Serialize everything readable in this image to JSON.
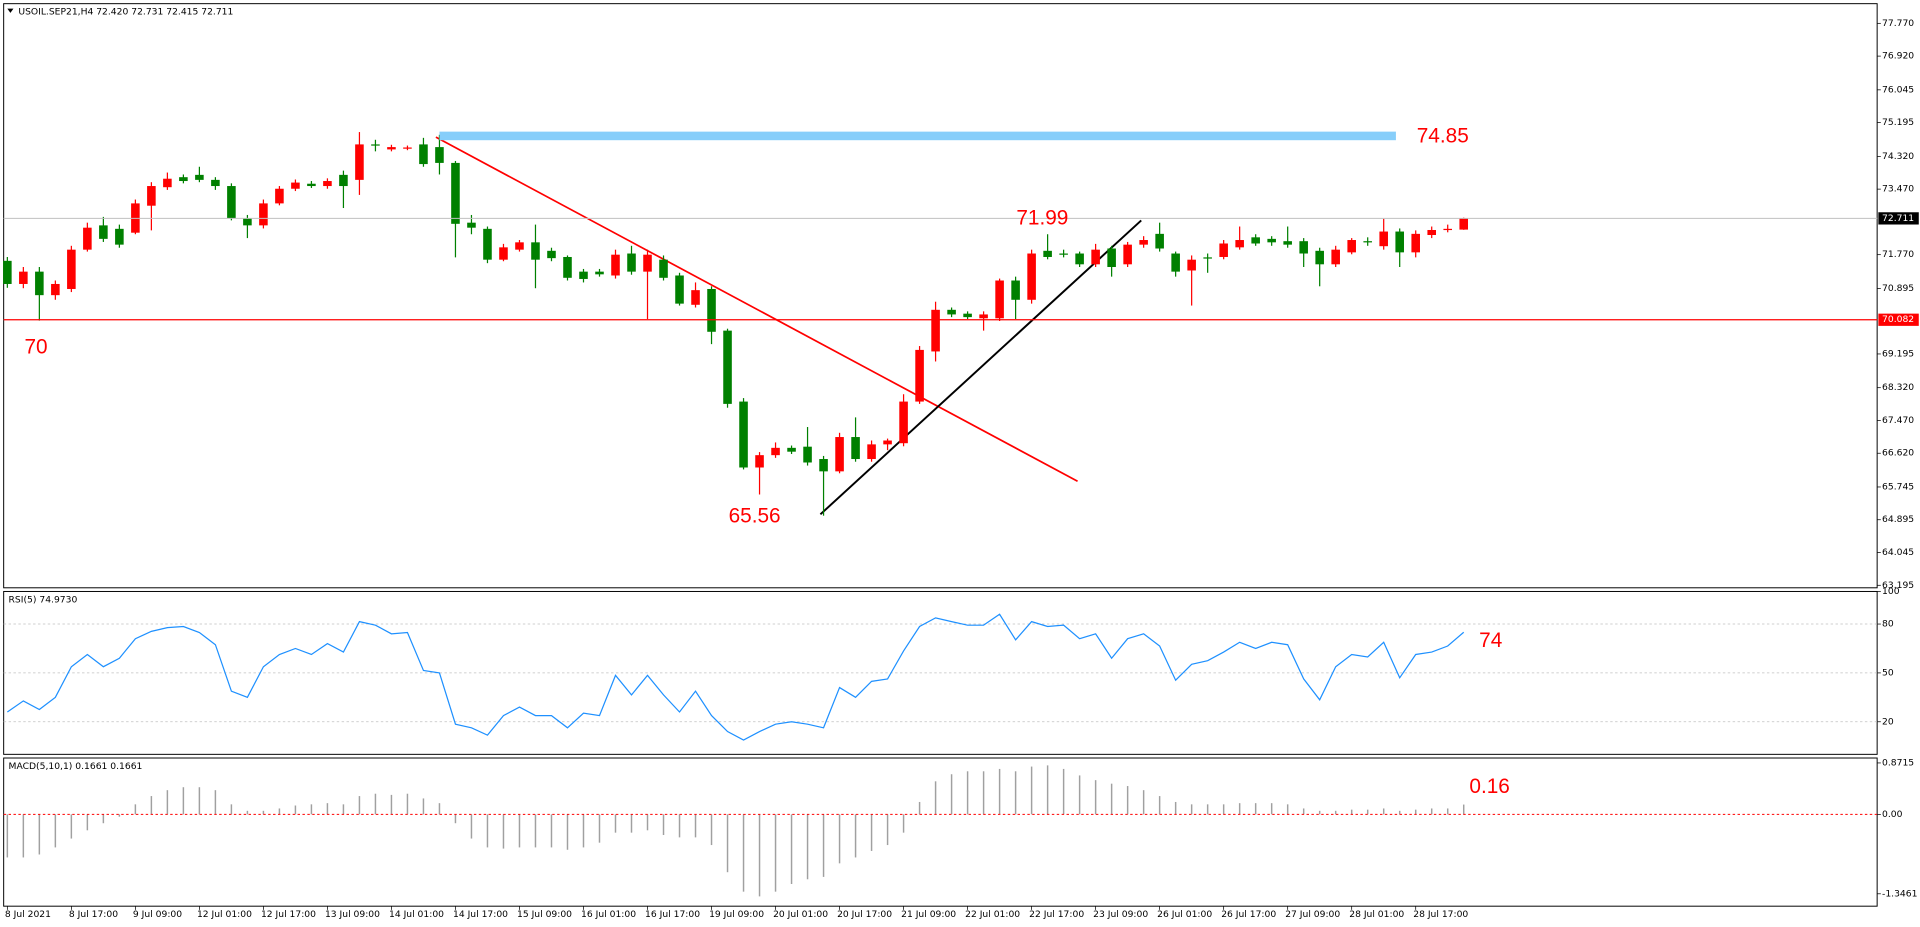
{
  "chart_data": [
    {
      "type": "candlestick",
      "title": "USOIL.SEP21,H4  72.420 72.731 72.415 72.711",
      "categories": [
        "8 Jul 2021",
        null,
        null,
        null,
        "8 Jul 17:00",
        null,
        null,
        null,
        "9 Jul 09:00",
        null,
        null,
        null,
        "12 Jul 01:00",
        null,
        null,
        null,
        "12 Jul 17:00",
        null,
        null,
        null,
        "13 Jul 09:00",
        null,
        null,
        null,
        "14 Jul 01:00",
        null,
        null,
        null,
        "14 Jul 17:00",
        null,
        null,
        null,
        "15 Jul 09:00",
        null,
        null,
        null,
        "16 Jul 01:00",
        null,
        null,
        null,
        "16 Jul 17:00",
        null,
        null,
        null,
        "19 Jul 09:00",
        null,
        null,
        null,
        "20 Jul 01:00",
        null,
        null,
        null,
        "20 Jul 17:00",
        null,
        null,
        null,
        "21 Jul 09:00",
        null,
        null,
        null,
        "22 Jul 01:00",
        null,
        null,
        null,
        "22 Jul 17:00",
        null,
        null,
        null,
        "23 Jul 09:00",
        null,
        null,
        null,
        "26 Jul 01:00",
        null,
        null,
        null,
        "26 Jul 17:00",
        null,
        null,
        null,
        "27 Jul 09:00",
        null,
        null,
        null,
        "28 Jul 01:00",
        null,
        null,
        null,
        "28 Jul 17:00",
        null,
        null,
        null
      ],
      "open": [
        71.61,
        71.01,
        71.33,
        70.72,
        70.88,
        71.9,
        72.53,
        72.44,
        72.34,
        73.04,
        73.52,
        73.78,
        73.84,
        73.71,
        73.55,
        72.72,
        72.53,
        73.1,
        73.48,
        73.61,
        73.55,
        73.84,
        73.71,
        74.63,
        74.5,
        74.52,
        74.63,
        74.56,
        74.15,
        72.6,
        72.44,
        71.64,
        71.9,
        72.09,
        71.87,
        71.71,
        71.33,
        71.33,
        71.23,
        71.8,
        71.33,
        71.64,
        71.23,
        70.47,
        70.88,
        69.8,
        67.96,
        66.25,
        66.57,
        66.76,
        66.79,
        66.47,
        66.15,
        67.04,
        66.47,
        66.85,
        66.88,
        67.96,
        69.26,
        70.34,
        70.24,
        70.12,
        70.12,
        71.1,
        70.6,
        71.87,
        71.8,
        71.8,
        71.52,
        71.93,
        71.52,
        72.03,
        72.31,
        71.8,
        71.36,
        71.7,
        71.71,
        71.96,
        72.22,
        72.18,
        72.12,
        72.12,
        71.87,
        71.52,
        71.83,
        72.12,
        71.99,
        72.37,
        71.83,
        72.28,
        72.41,
        72.42
      ],
      "high": [
        71.71,
        71.45,
        71.45,
        71.1,
        72.0,
        72.6,
        72.75,
        72.55,
        73.2,
        73.65,
        73.9,
        73.85,
        74.05,
        73.78,
        73.62,
        72.8,
        73.2,
        73.55,
        73.72,
        73.68,
        73.75,
        73.95,
        74.95,
        74.75,
        74.62,
        74.6,
        74.8,
        74.88,
        74.2,
        72.8,
        72.5,
        72.05,
        72.15,
        72.55,
        71.95,
        71.75,
        71.4,
        71.4,
        71.9,
        72.0,
        71.9,
        71.75,
        71.3,
        71.05,
        70.95,
        69.85,
        68.05,
        66.65,
        66.9,
        66.82,
        67.3,
        66.55,
        67.15,
        67.55,
        66.95,
        67.0,
        68.15,
        69.4,
        70.55,
        70.4,
        70.3,
        70.3,
        71.15,
        71.2,
        71.9,
        72.3,
        71.9,
        71.85,
        72.05,
        72.0,
        72.1,
        72.25,
        72.6,
        71.85,
        71.75,
        71.8,
        72.15,
        72.5,
        72.3,
        72.25,
        72.5,
        72.2,
        71.95,
        72.0,
        72.2,
        72.22,
        72.7,
        72.45,
        72.4,
        72.5,
        72.55,
        72.731
      ],
      "low": [
        70.91,
        70.9,
        70.06,
        70.6,
        70.8,
        71.85,
        72.1,
        71.95,
        72.3,
        72.4,
        73.45,
        73.62,
        73.65,
        73.45,
        72.66,
        72.2,
        72.45,
        73.05,
        73.42,
        73.5,
        73.48,
        72.98,
        73.32,
        74.45,
        74.45,
        74.48,
        74.05,
        73.85,
        71.7,
        72.3,
        71.55,
        71.6,
        71.85,
        70.9,
        71.6,
        71.1,
        71.05,
        71.2,
        71.15,
        71.25,
        70.1,
        71.1,
        70.45,
        70.4,
        69.45,
        67.8,
        66.2,
        65.55,
        66.5,
        66.6,
        66.3,
        65.0,
        66.1,
        66.4,
        66.4,
        66.7,
        66.8,
        67.9,
        69.0,
        70.15,
        70.1,
        69.8,
        70.05,
        70.1,
        70.5,
        71.65,
        71.7,
        71.45,
        71.45,
        71.2,
        71.45,
        71.95,
        71.85,
        71.2,
        70.45,
        71.3,
        71.65,
        71.9,
        72.0,
        72.0,
        71.95,
        71.45,
        70.95,
        71.45,
        71.78,
        72.0,
        71.9,
        71.45,
        71.7,
        72.2,
        72.35,
        72.415
      ],
      "close": [
        71.01,
        71.33,
        70.72,
        71.01,
        71.9,
        72.47,
        72.18,
        72.03,
        73.1,
        73.55,
        73.74,
        73.68,
        73.71,
        73.55,
        72.72,
        72.53,
        73.1,
        73.48,
        73.64,
        73.55,
        73.68,
        73.55,
        74.63,
        74.6,
        74.56,
        74.55,
        74.12,
        74.15,
        72.57,
        72.47,
        71.64,
        71.96,
        72.09,
        71.64,
        71.68,
        71.17,
        71.14,
        71.26,
        71.77,
        71.33,
        71.77,
        71.17,
        70.5,
        70.85,
        69.77,
        67.9,
        66.25,
        66.57,
        66.76,
        66.66,
        66.38,
        66.15,
        67.04,
        66.47,
        66.85,
        66.95,
        67.96,
        69.3,
        70.34,
        70.22,
        70.15,
        70.22,
        71.1,
        70.6,
        71.8,
        71.71,
        71.77,
        71.52,
        71.9,
        71.45,
        72.03,
        72.15,
        71.93,
        71.33,
        71.64,
        71.68,
        72.06,
        72.15,
        72.06,
        72.09,
        72.03,
        71.8,
        71.52,
        71.9,
        72.15,
        72.09,
        72.37,
        71.83,
        72.31,
        72.41,
        72.44,
        72.711
      ],
      "up_color": "#ff0000",
      "down_color": "#008000",
      "ylim": [
        63.13,
        78.28
      ],
      "yticks": [
        {
          "value": 77.77,
          "label": "77.770"
        },
        {
          "value": 76.92,
          "label": "76.920"
        },
        {
          "value": 76.045,
          "label": "76.045"
        },
        {
          "value": 75.195,
          "label": "75.195"
        },
        {
          "value": 74.32,
          "label": "74.320"
        },
        {
          "value": 73.47,
          "label": "73.470"
        },
        {
          "value": 71.77,
          "label": "71.770"
        },
        {
          "value": 70.895,
          "label": "70.895"
        },
        {
          "value": 69.195,
          "label": "69.195"
        },
        {
          "value": 68.32,
          "label": "68.320"
        },
        {
          "value": 67.47,
          "label": "67.470"
        },
        {
          "value": 66.62,
          "label": "66.620"
        },
        {
          "value": 65.745,
          "label": "65.745"
        },
        {
          "value": 64.895,
          "label": "64.895"
        },
        {
          "value": 64.045,
          "label": "64.045"
        },
        {
          "value": 63.195,
          "label": "63.195"
        }
      ],
      "hlines": [
        {
          "value": 70.082,
          "label": "70.082",
          "color": "#ff0000"
        },
        {
          "value": 74.85,
          "color": "#87cefa"
        }
      ],
      "last_price": {
        "value": 72.711,
        "label": "72.711",
        "color": "#c0c0c0"
      },
      "annotations": [
        "70",
        "74.85",
        "71.99",
        "65.56"
      ],
      "annotation_color": "#ff0000"
    },
    {
      "type": "line",
      "title": "RSI(5) 74.9730",
      "color": "#1e90ff",
      "values": [
        26.0,
        32.8,
        27.5,
        35.0,
        53.8,
        61.3,
        53.8,
        59.0,
        71.0,
        75.5,
        77.8,
        78.5,
        74.8,
        67.3,
        38.8,
        35.0,
        53.8,
        61.3,
        65.0,
        61.3,
        68.0,
        62.8,
        81.5,
        79.3,
        74.0,
        74.8,
        51.5,
        50.0,
        18.5,
        16.3,
        11.8,
        23.8,
        29.0,
        23.8,
        23.8,
        16.3,
        25.3,
        23.8,
        48.5,
        36.5,
        48.5,
        36.5,
        26.0,
        38.8,
        23.8,
        14.0,
        8.8,
        14.0,
        18.5,
        20.0,
        18.5,
        16.3,
        41.0,
        35.0,
        44.8,
        46.3,
        63.5,
        78.5,
        83.8,
        81.5,
        79.3,
        79.3,
        86.0,
        70.3,
        81.5,
        78.5,
        79.3,
        71.0,
        74.0,
        59.0,
        71.0,
        74.0,
        66.5,
        45.5,
        55.3,
        57.5,
        62.8,
        68.8,
        65.0,
        68.8,
        67.3,
        46.3,
        33.5,
        53.8,
        61.3,
        59.8,
        68.8,
        47.0,
        61.3,
        62.8,
        66.5,
        74.973
      ],
      "ylim": [
        0,
        100
      ],
      "yticks": [
        100,
        80,
        50,
        20
      ],
      "grid": true,
      "annotations": [
        "74"
      ],
      "annotation_color": "#ff0000"
    },
    {
      "type": "bar",
      "title": "MACD(5,10,1) 0.1661 0.1661",
      "color": "#a0a0a0",
      "baseline_color": "#ff0000",
      "values": [
        -0.73,
        -0.73,
        -0.68,
        -0.56,
        -0.41,
        -0.27,
        -0.15,
        -0.04,
        0.17,
        0.31,
        0.41,
        0.46,
        0.46,
        0.41,
        0.17,
        0.06,
        0.06,
        0.1,
        0.15,
        0.17,
        0.19,
        0.17,
        0.31,
        0.35,
        0.33,
        0.35,
        0.27,
        0.19,
        -0.15,
        -0.41,
        -0.56,
        -0.58,
        -0.56,
        -0.56,
        -0.56,
        -0.6,
        -0.56,
        -0.48,
        -0.31,
        -0.31,
        -0.27,
        -0.35,
        -0.39,
        -0.39,
        -0.52,
        -0.98,
        -1.31,
        -1.39,
        -1.31,
        -1.18,
        -1.1,
        -1.06,
        -0.83,
        -0.73,
        -0.62,
        -0.52,
        -0.31,
        0.21,
        0.56,
        0.68,
        0.73,
        0.73,
        0.77,
        0.73,
        0.81,
        0.83,
        0.77,
        0.66,
        0.58,
        0.52,
        0.48,
        0.41,
        0.31,
        0.21,
        0.17,
        0.17,
        0.17,
        0.19,
        0.19,
        0.19,
        0.17,
        0.1,
        0.06,
        0.06,
        0.08,
        0.08,
        0.1,
        0.06,
        0.08,
        0.1,
        0.1,
        0.1661
      ],
      "ylim": [
        -1.556,
        0.955
      ],
      "yticks": [
        0.8715,
        {
          "value": 0,
          "label": "0.00"
        },
        -1.3461
      ],
      "annotations": [
        "0.16"
      ],
      "annotation_color": "#ff0000"
    }
  ]
}
